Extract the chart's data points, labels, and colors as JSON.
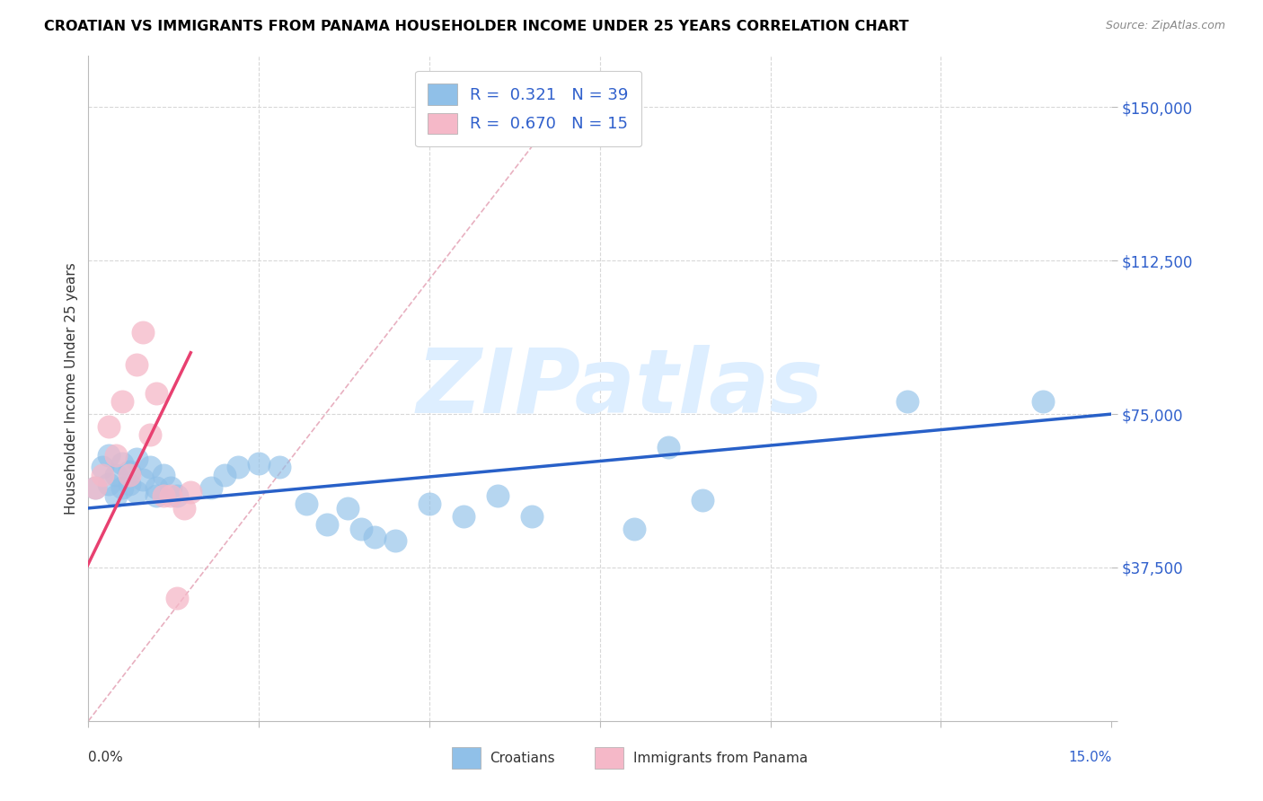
{
  "title": "CROATIAN VS IMMIGRANTS FROM PANAMA HOUSEHOLDER INCOME UNDER 25 YEARS CORRELATION CHART",
  "source": "Source: ZipAtlas.com",
  "ylabel": "Householder Income Under 25 years",
  "yticks": [
    0,
    37500,
    75000,
    112500,
    150000
  ],
  "ytick_labels": [
    "",
    "$37,500",
    "$75,000",
    "$112,500",
    "$150,000"
  ],
  "legend_r_blue": "0.321",
  "legend_n_blue": "39",
  "legend_r_pink": "0.670",
  "legend_n_pink": "15",
  "blue_scatter_color": "#90c0e8",
  "pink_scatter_color": "#f5b8c8",
  "blue_line_color": "#2860c8",
  "pink_line_color": "#e84070",
  "diag_line_color": "#e8b0c0",
  "text_blue": "#3060cc",
  "text_black": "#333333",
  "grid_color": "#d8d8d8",
  "watermark_color": "#ddeeff",
  "xmin": 0.0,
  "xmax": 0.15,
  "ymin": 0,
  "ymax": 162500,
  "croatians_x": [
    0.001,
    0.002,
    0.003,
    0.003,
    0.004,
    0.004,
    0.005,
    0.005,
    0.006,
    0.006,
    0.007,
    0.007,
    0.008,
    0.009,
    0.01,
    0.01,
    0.011,
    0.012,
    0.013,
    0.018,
    0.02,
    0.022,
    0.025,
    0.028,
    0.032,
    0.035,
    0.038,
    0.04,
    0.042,
    0.045,
    0.05,
    0.055,
    0.06,
    0.065,
    0.08,
    0.085,
    0.09,
    0.12,
    0.14
  ],
  "croatians_y": [
    57000,
    62000,
    58000,
    65000,
    60000,
    55000,
    63000,
    57000,
    61000,
    58000,
    56000,
    64000,
    59000,
    62000,
    57000,
    55000,
    60000,
    57000,
    55000,
    57000,
    60000,
    62000,
    63000,
    62000,
    53000,
    48000,
    52000,
    47000,
    45000,
    44000,
    53000,
    50000,
    55000,
    50000,
    47000,
    67000,
    54000,
    78000,
    78000
  ],
  "panama_x": [
    0.001,
    0.002,
    0.003,
    0.004,
    0.005,
    0.006,
    0.007,
    0.008,
    0.009,
    0.01,
    0.011,
    0.012,
    0.013,
    0.014,
    0.015
  ],
  "panama_y": [
    57000,
    60000,
    72000,
    65000,
    78000,
    60000,
    87000,
    95000,
    70000,
    80000,
    55000,
    55000,
    30000,
    52000,
    56000
  ],
  "blue_trend_x0": 0.0,
  "blue_trend_y0": 52000,
  "blue_trend_x1": 0.15,
  "blue_trend_y1": 75000,
  "pink_trend_x0": -0.001,
  "pink_trend_y0": 35000,
  "pink_trend_x1": 0.015,
  "pink_trend_y1": 90000
}
